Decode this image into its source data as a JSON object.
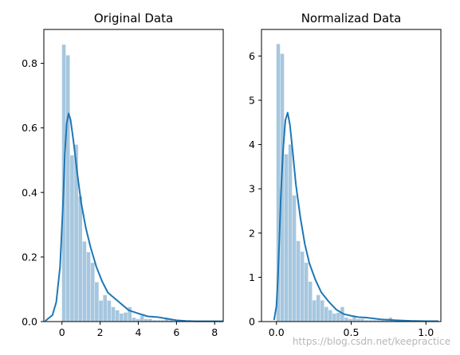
{
  "chart_data": [
    {
      "type": "histogram",
      "title": "Original Data",
      "xlabel": "",
      "ylabel": "",
      "xlim": [
        -0.95,
        8.45
      ],
      "ylim": [
        0,
        0.905
      ],
      "xticks": [
        0,
        2,
        4,
        6,
        8
      ],
      "xtick_labels": [
        "0",
        "2",
        "4",
        "6",
        "8"
      ],
      "yticks": [
        0.0,
        0.2,
        0.4,
        0.6,
        0.8
      ],
      "ytick_labels": [
        "0.0",
        "0.2",
        "0.4",
        "0.6",
        "0.8"
      ],
      "grid": false,
      "bins": {
        "edges": [
          0,
          0.2157,
          0.4314,
          0.6471,
          0.8628,
          1.0785,
          1.2942,
          1.5099,
          1.7256,
          1.9413,
          2.157,
          2.3727,
          2.5884,
          2.8041,
          3.0198,
          3.2355,
          3.4512,
          3.6669,
          3.8826,
          4.0983,
          4.314,
          4.5297,
          4.7454,
          4.9611,
          5.1768,
          5.3925,
          5.6082,
          5.8239
        ],
        "values": [
          0.858,
          0.825,
          0.515,
          0.548,
          0.388,
          0.248,
          0.215,
          0.182,
          0.122,
          0.065,
          0.082,
          0.065,
          0.045,
          0.035,
          0.025,
          0.028,
          0.045,
          0.012,
          0.008,
          0.018,
          0.008,
          0.008,
          0.004,
          0.004,
          0.004,
          0.012,
          0.004
        ]
      },
      "kde": {
        "x": [
          -0.85,
          -0.5,
          -0.3,
          -0.1,
          0.05,
          0.15,
          0.25,
          0.35,
          0.45,
          0.6,
          0.8,
          1.0,
          1.25,
          1.5,
          1.8,
          2.1,
          2.4,
          2.7,
          3.0,
          3.5,
          4.0,
          4.5,
          5.0,
          5.5,
          6.0,
          6.5,
          7.0,
          7.5,
          8.0,
          8.4
        ],
        "y": [
          0.003,
          0.02,
          0.06,
          0.17,
          0.36,
          0.52,
          0.615,
          0.645,
          0.625,
          0.56,
          0.46,
          0.37,
          0.29,
          0.23,
          0.17,
          0.125,
          0.09,
          0.075,
          0.06,
          0.035,
          0.025,
          0.016,
          0.014,
          0.009,
          0.004,
          0.002,
          0.001,
          0.001,
          0.001,
          0.001
        ]
      },
      "colors": {
        "bars": "#a6c7df",
        "kde": "#1f77b4"
      }
    },
    {
      "type": "histogram",
      "title": "Normalizad Data",
      "xlabel": "",
      "ylabel": "",
      "xlim": [
        -0.1,
        1.1
      ],
      "ylim": [
        0,
        6.6
      ],
      "xticks": [
        0.0,
        0.5,
        1.0
      ],
      "xtick_labels": [
        "0.0",
        "0.5",
        "1.0"
      ],
      "yticks": [
        0,
        1,
        2,
        3,
        4,
        5,
        6
      ],
      "ytick_labels": [
        "0",
        "1",
        "2",
        "3",
        "4",
        "5",
        "6"
      ],
      "grid": false,
      "bins": {
        "edges": [
          0,
          0.0268,
          0.0536,
          0.0804,
          0.1072,
          0.134,
          0.1608,
          0.1876,
          0.2144,
          0.2412,
          0.268,
          0.2948,
          0.3216,
          0.3484,
          0.3752,
          0.402,
          0.4288,
          0.4556,
          0.4824,
          0.5092,
          0.536,
          0.5628,
          0.5896,
          0.6164,
          0.6432,
          0.67,
          0.6968,
          0.7236,
          0.7504,
          0.7772,
          0.804
        ],
        "values": [
          6.27,
          6.05,
          3.78,
          4.0,
          2.85,
          1.82,
          1.58,
          1.33,
          0.9,
          0.48,
          0.6,
          0.48,
          0.33,
          0.26,
          0.18,
          0.2,
          0.33,
          0.09,
          0.06,
          0.13,
          0.06,
          0.06,
          0.03,
          0.03,
          0.03,
          0.03,
          0.03,
          0.03,
          0.09,
          0.03
        ]
      },
      "kde": {
        "x": [
          -0.015,
          0.0,
          0.01,
          0.02,
          0.03,
          0.045,
          0.06,
          0.075,
          0.09,
          0.11,
          0.13,
          0.16,
          0.19,
          0.22,
          0.26,
          0.3,
          0.35,
          0.4,
          0.45,
          0.5,
          0.55,
          0.6,
          0.7,
          0.8,
          0.9,
          1.0,
          1.05,
          1.08
        ],
        "y": [
          0.05,
          0.35,
          1.0,
          1.9,
          2.9,
          3.9,
          4.55,
          4.72,
          4.45,
          3.8,
          3.1,
          2.35,
          1.75,
          1.32,
          0.95,
          0.66,
          0.45,
          0.27,
          0.17,
          0.13,
          0.1,
          0.09,
          0.05,
          0.03,
          0.015,
          0.01,
          0.008,
          0.008
        ]
      },
      "colors": {
        "bars": "#a6c7df",
        "kde": "#1f77b4"
      }
    }
  ],
  "watermark": "https://blog.csdn.net/keepractice"
}
